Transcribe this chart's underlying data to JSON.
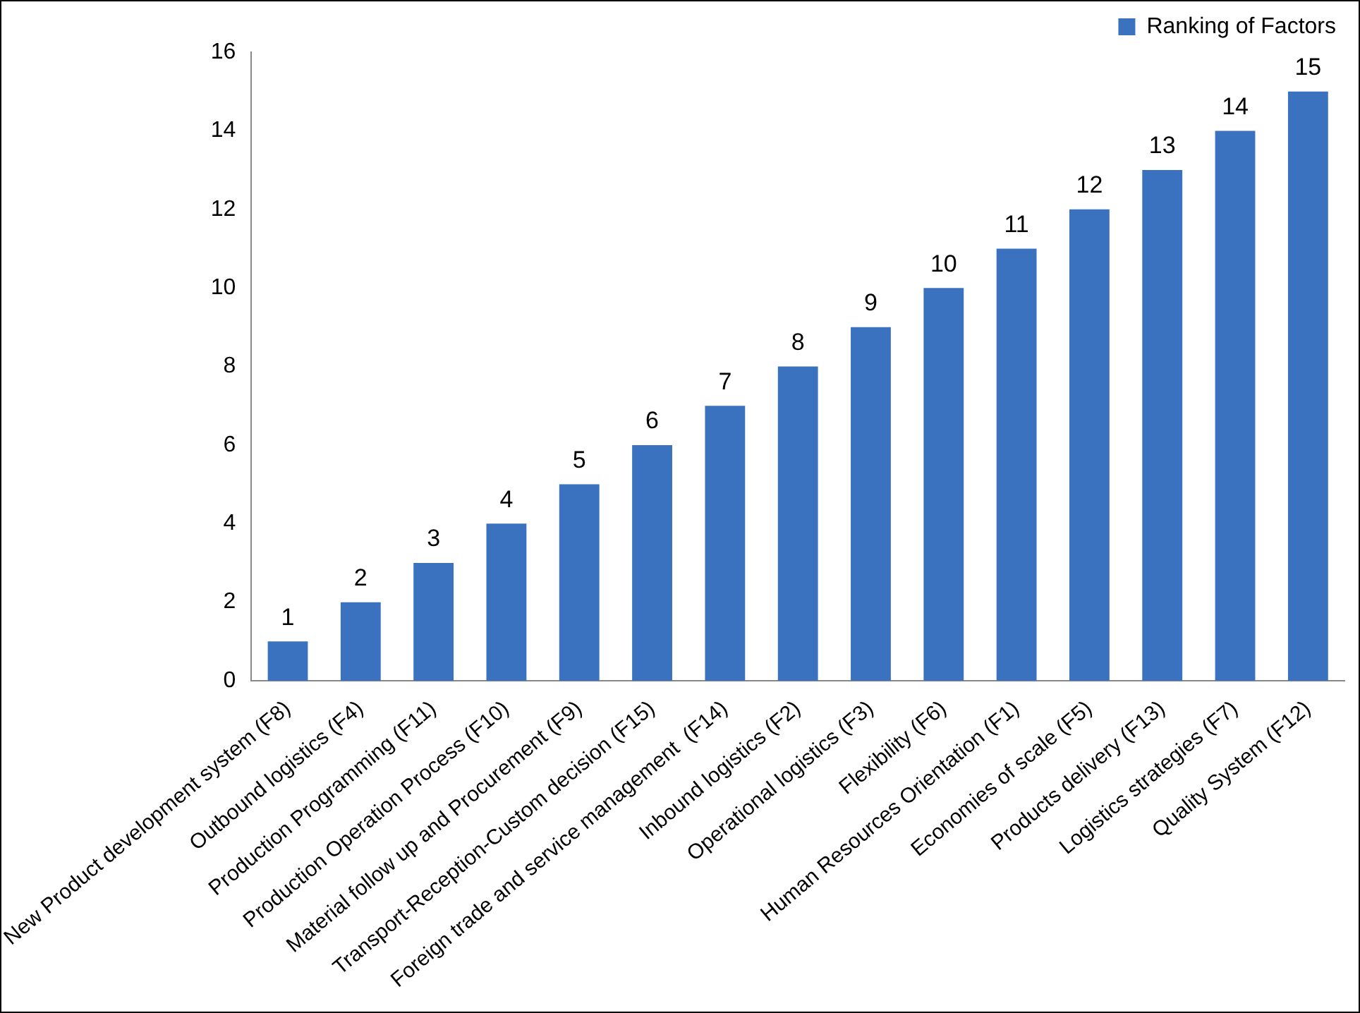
{
  "chart_data": {
    "type": "bar",
    "categories": [
      "New Product development system (F8)",
      "Outbound logistics (F4)",
      "Production Programming (F11)",
      "Production Operation Process (F10)",
      "Material follow up and Procurement (F9)",
      "Transport-Reception-Custom decision (F15)",
      "Foreign trade and service management  (F14)",
      "Inbound logistics (F2)",
      "Operational logistics (F3)",
      "Flexibility (F6)",
      "Human Resources Orientation (F1)",
      "Economies of scale (F5)",
      "Products delivery (F13)",
      "Logistics strategies (F7)",
      "Quality System (F12)"
    ],
    "series": [
      {
        "name": "Ranking of Factors",
        "color": "#3a72c0",
        "values": [
          1,
          2,
          3,
          4,
          5,
          6,
          7,
          8,
          9,
          10,
          11,
          12,
          13,
          14,
          15
        ]
      }
    ],
    "ylim": [
      0,
      16
    ],
    "yticks": [
      0,
      2,
      4,
      6,
      8,
      10,
      12,
      14,
      16
    ],
    "grid": false,
    "legend": "top right",
    "data_labels": true
  }
}
